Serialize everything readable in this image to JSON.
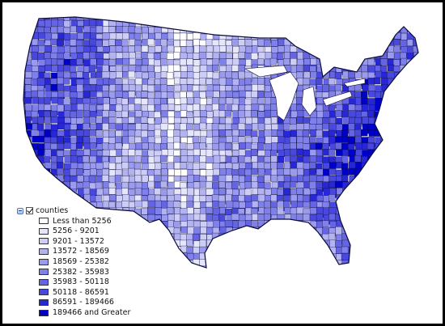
{
  "layer": {
    "name": "counties",
    "checked": true
  },
  "legend": {
    "classes": [
      {
        "label": "Less than 5256",
        "color": "#ffffff"
      },
      {
        "label": "5256 - 9201",
        "color": "#e6e6fb"
      },
      {
        "label": "9201 - 13572",
        "color": "#cdcdf6"
      },
      {
        "label": "13572 - 18569",
        "color": "#b3b3f2"
      },
      {
        "label": "18569 - 25382",
        "color": "#9a9aee"
      },
      {
        "label": "25382 - 35983",
        "color": "#8080ea"
      },
      {
        "label": "35983 - 50118",
        "color": "#6464e4"
      },
      {
        "label": "50118 - 86591",
        "color": "#4848de"
      },
      {
        "label": "86591 - 189466",
        "color": "#2727d8"
      },
      {
        "label": "189466 and Greater",
        "color": "#0000cc"
      }
    ]
  },
  "map": {
    "border_color": "#0a0a3c",
    "background": "#ffffff"
  },
  "icons": {
    "collapse": "collapse-icon",
    "checkbox": "checkbox-icon"
  }
}
